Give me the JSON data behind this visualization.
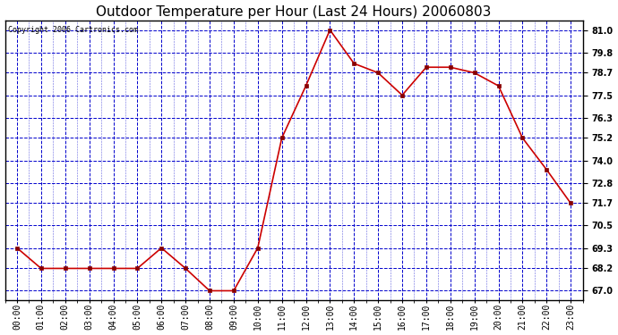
{
  "title": "Outdoor Temperature per Hour (Last 24 Hours) 20060803",
  "copyright_text": "Copyright 2006 Cartronics.com",
  "hours": [
    "00:00",
    "01:00",
    "02:00",
    "03:00",
    "04:00",
    "05:00",
    "06:00",
    "07:00",
    "08:00",
    "09:00",
    "10:00",
    "11:00",
    "12:00",
    "13:00",
    "14:00",
    "15:00",
    "16:00",
    "17:00",
    "18:00",
    "19:00",
    "20:00",
    "21:00",
    "22:00",
    "23:00"
  ],
  "temps": [
    69.3,
    68.2,
    68.2,
    68.2,
    68.2,
    68.2,
    69.3,
    68.2,
    67.0,
    67.0,
    69.3,
    75.2,
    78.0,
    81.0,
    79.2,
    78.7,
    77.5,
    79.0,
    79.0,
    78.7,
    78.0,
    75.2,
    73.5,
    71.7
  ],
  "yticks": [
    67.0,
    68.2,
    69.3,
    70.5,
    71.7,
    72.8,
    74.0,
    75.2,
    76.3,
    77.5,
    78.7,
    79.8,
    81.0
  ],
  "ylim": [
    66.5,
    81.5
  ],
  "line_color": "#cc0000",
  "marker_color": "#880000",
  "bg_color": "#ffffff",
  "plot_bg_color": "#ffffff",
  "grid_color": "#0000cc",
  "title_fontsize": 11,
  "tick_fontsize": 7,
  "copyright_fontsize": 6
}
